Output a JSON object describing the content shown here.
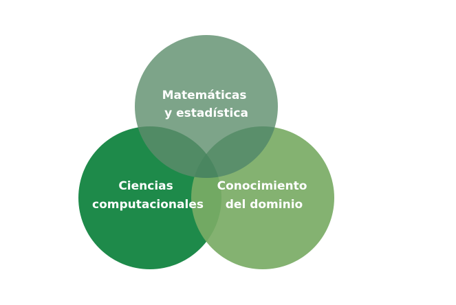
{
  "diagram": {
    "type": "venn-3",
    "circles": [
      {
        "id": "mathematics",
        "lines": [
          "Matemáticas",
          "y estadística"
        ],
        "color": "#6f9a7c"
      },
      {
        "id": "computer-science",
        "lines": [
          "Ciencias",
          "computacionales"
        ],
        "color": "#1e8a4a"
      },
      {
        "id": "domain-knowledge",
        "lines": [
          "Conocimiento",
          "del dominio"
        ],
        "color": "#7aab65"
      }
    ],
    "overlap_color": "#3f7f58"
  }
}
